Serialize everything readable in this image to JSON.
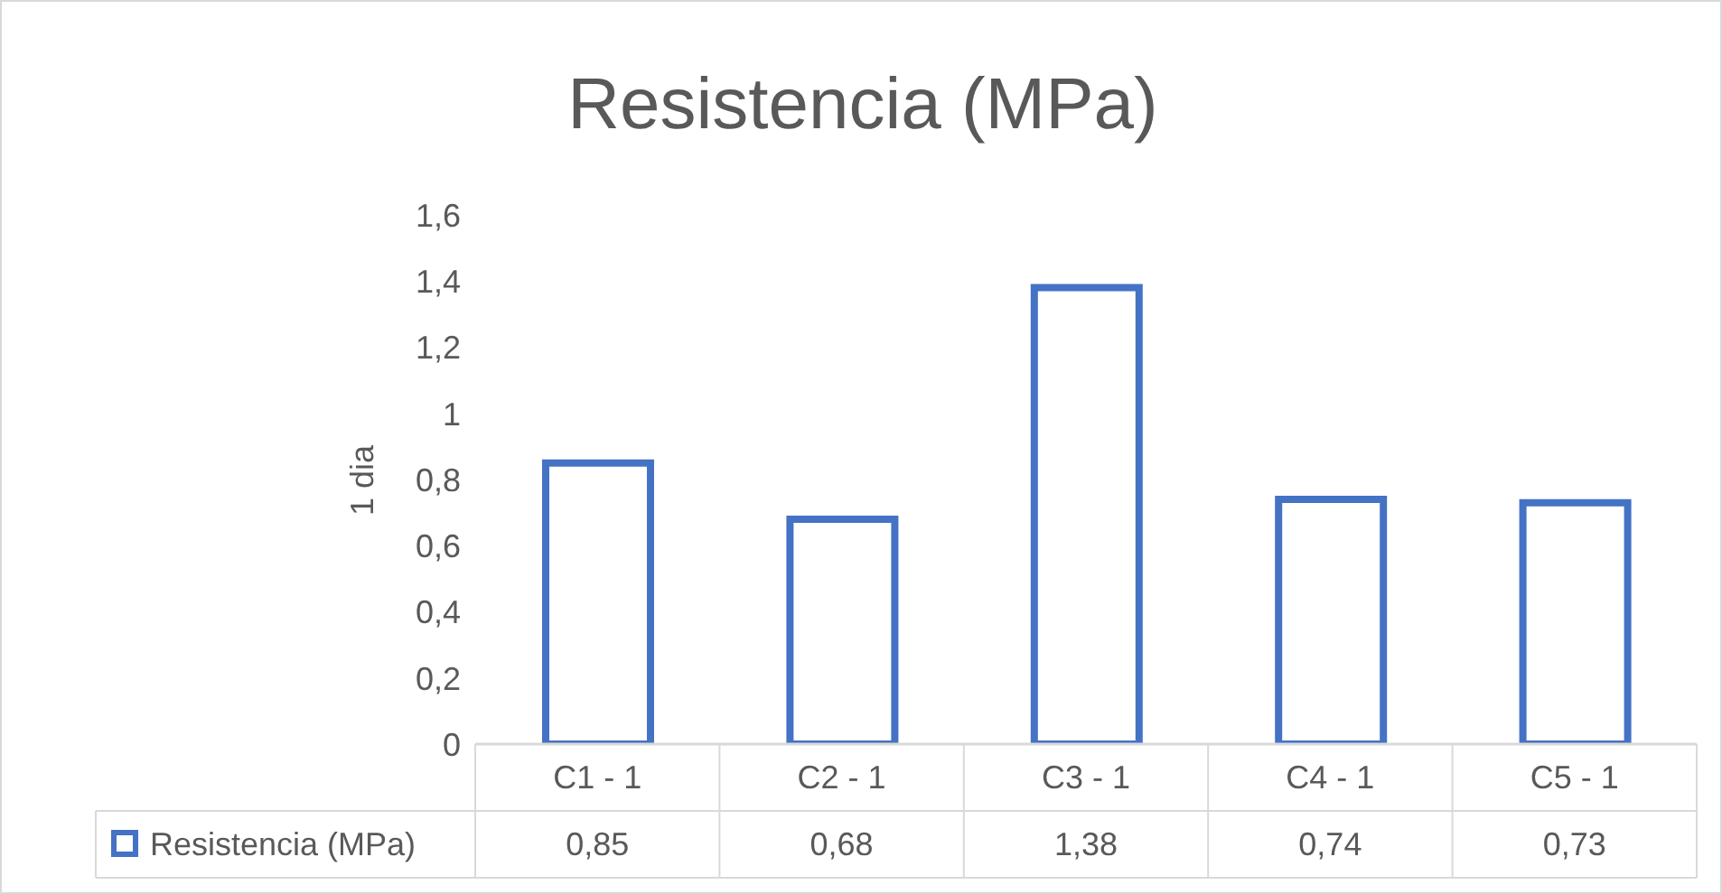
{
  "chart_data": {
    "type": "bar",
    "title": "Resistencia (MPa)",
    "ylabel": "1 dia",
    "categories": [
      "C1 - 1",
      "C2 - 1",
      "C3 - 1",
      "C4 - 1",
      "C5 - 1"
    ],
    "series": [
      {
        "name": "Resistencia (MPa)",
        "color": "#4472c4",
        "values": [
          0.85,
          0.68,
          1.38,
          0.74,
          0.73
        ],
        "value_labels": [
          "0,85",
          "0,68",
          "1,38",
          "0,74",
          "0,73"
        ]
      }
    ],
    "ylim": [
      0,
      1.6
    ],
    "yticks": [
      0,
      {
        "value": 0.2,
        "label": "0,2"
      },
      {
        "value": 0.4,
        "label": "0,4"
      },
      {
        "value": 0.6,
        "label": "0,6"
      },
      {
        "value": 0.8,
        "label": "0,8"
      },
      1,
      {
        "value": 1.2,
        "label": "1,2"
      },
      {
        "value": 1.4,
        "label": "1,4"
      },
      {
        "value": 1.6,
        "label": "1,6"
      }
    ],
    "grid": false,
    "legend": "bottom"
  }
}
